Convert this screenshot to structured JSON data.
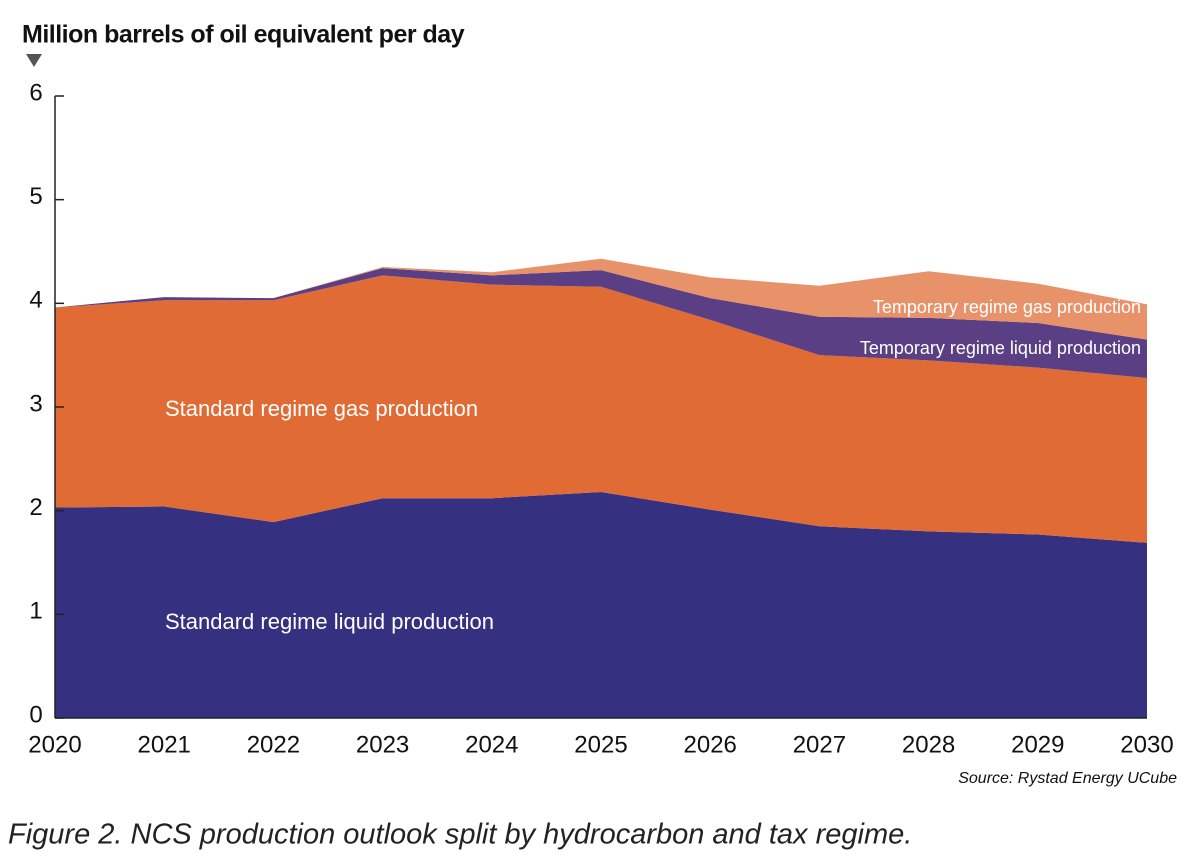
{
  "chart_data": {
    "type": "stacked_area",
    "y_label": "Million barrels of oil equivalent per day",
    "source": "Source: Rystad Energy UCube",
    "caption": "Figure 2. NCS production outlook split by hydrocarbon and tax regime.",
    "categories": [
      "2020",
      "2021",
      "2022",
      "2023",
      "2024",
      "2025",
      "2026",
      "2027",
      "2028",
      "2029",
      "2030"
    ],
    "series": [
      {
        "name": "Standard regime liquid production",
        "color": "#35307f",
        "values": [
          2.03,
          2.04,
          1.89,
          2.12,
          2.12,
          2.18,
          2.01,
          1.85,
          1.8,
          1.77,
          1.69
        ]
      },
      {
        "name": "Standard regime gas production",
        "color": "#e06b35",
        "values": [
          1.93,
          1.99,
          2.14,
          2.15,
          2.06,
          1.98,
          1.83,
          1.65,
          1.65,
          1.61,
          1.59
        ]
      },
      {
        "name": "Temporary regime liquid production",
        "color": "#5b3f84",
        "values": [
          0,
          0.03,
          0.02,
          0.07,
          0.09,
          0.16,
          0.21,
          0.37,
          0.41,
          0.43,
          0.37
        ]
      },
      {
        "name": "Temporary regime gas production",
        "color": "#e8926a",
        "values": [
          0,
          0,
          0,
          0.01,
          0.03,
          0.11,
          0.2,
          0.3,
          0.45,
          0.38,
          0.34
        ]
      }
    ],
    "ylim": [
      0,
      6
    ],
    "yticks": [
      0,
      1,
      2,
      3,
      4,
      5,
      6
    ]
  }
}
